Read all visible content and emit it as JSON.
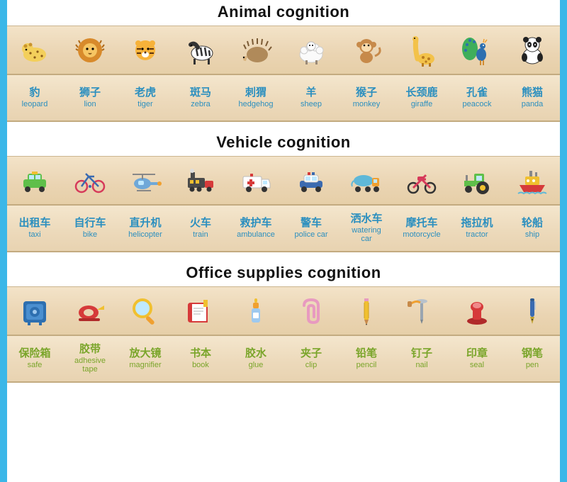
{
  "border_color": "#3bb7e8",
  "sections": [
    {
      "id": "animal",
      "title": "Animal cognition",
      "label_color": "#2b8fbf",
      "items": [
        {
          "icon": "leopard",
          "cn": "豹",
          "en": "leopard"
        },
        {
          "icon": "lion",
          "cn": "狮子",
          "en": "lion"
        },
        {
          "icon": "tiger",
          "cn": "老虎",
          "en": "tiger"
        },
        {
          "icon": "zebra",
          "cn": "斑马",
          "en": "zebra"
        },
        {
          "icon": "hedgehog",
          "cn": "刺猬",
          "en": "hedgehog"
        },
        {
          "icon": "sheep",
          "cn": "羊",
          "en": "sheep"
        },
        {
          "icon": "monkey",
          "cn": "猴子",
          "en": "monkey"
        },
        {
          "icon": "giraffe",
          "cn": "长颈鹿",
          "en": "giraffe"
        },
        {
          "icon": "peacock",
          "cn": "孔雀",
          "en": "peacock"
        },
        {
          "icon": "panda",
          "cn": "熊猫",
          "en": "panda"
        }
      ]
    },
    {
      "id": "vehicle",
      "title": "Vehicle cognition",
      "label_color": "#2b8fbf",
      "items": [
        {
          "icon": "taxi",
          "cn": "出租车",
          "en": "taxi"
        },
        {
          "icon": "bike",
          "cn": "自行车",
          "en": "bike"
        },
        {
          "icon": "helicopter",
          "cn": "直升机",
          "en": "helicopter"
        },
        {
          "icon": "train",
          "cn": "火车",
          "en": "train"
        },
        {
          "icon": "ambulance",
          "cn": "救护车",
          "en": "ambulance"
        },
        {
          "icon": "policecar",
          "cn": "警车",
          "en": "police car"
        },
        {
          "icon": "watering",
          "cn": "洒水车",
          "en": "watering\ncar"
        },
        {
          "icon": "motorcycle",
          "cn": "摩托车",
          "en": "motorcycle"
        },
        {
          "icon": "tractor",
          "cn": "拖拉机",
          "en": "tractor"
        },
        {
          "icon": "ship",
          "cn": "轮船",
          "en": "ship"
        }
      ]
    },
    {
      "id": "office",
      "title": "Office supplies cognition",
      "label_color": "#7aa52a",
      "items": [
        {
          "icon": "safe",
          "cn": "保险箱",
          "en": "safe"
        },
        {
          "icon": "tape",
          "cn": "胶带",
          "en": "adhesive\ntape"
        },
        {
          "icon": "magnifier",
          "cn": "放大镜",
          "en": "magnifier"
        },
        {
          "icon": "book",
          "cn": "书本",
          "en": "book"
        },
        {
          "icon": "glue",
          "cn": "胶水",
          "en": "glue"
        },
        {
          "icon": "clip",
          "cn": "夹子",
          "en": "clip"
        },
        {
          "icon": "pencil",
          "cn": "铅笔",
          "en": "pencil"
        },
        {
          "icon": "nail",
          "cn": "钉子",
          "en": "nail"
        },
        {
          "icon": "seal",
          "cn": "印章",
          "en": "seal"
        },
        {
          "icon": "pen",
          "cn": "钢笔",
          "en": "pen"
        }
      ]
    }
  ]
}
